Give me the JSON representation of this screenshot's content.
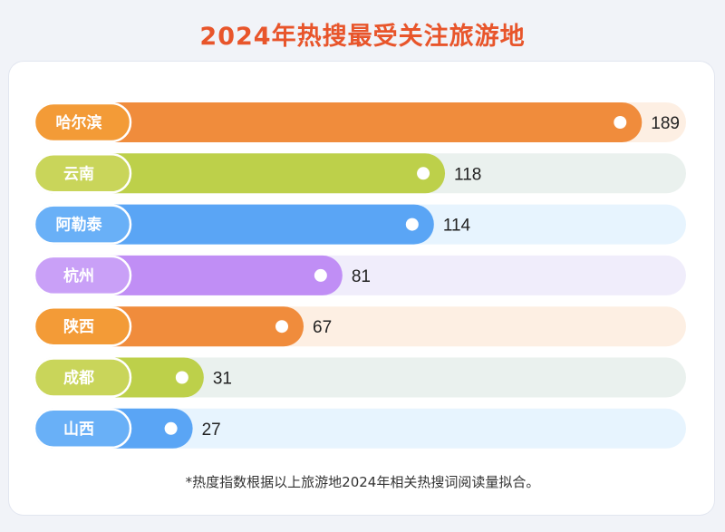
{
  "title": "2024年热搜最受关注旅游地",
  "note": "*热度指数根据以上旅游地2024年相关热搜词阅读量拟合。",
  "colors": {
    "title": "#e8552b",
    "orange_bar": "#f08c3c",
    "orange_label": "#f39b37",
    "orange_track": "#fdefe3",
    "green_bar": "#bdd04a",
    "green_label": "#c9d55a",
    "green_track": "#eaf1ee",
    "blue_bar": "#5aa5f5",
    "blue_label": "#69b0f7",
    "blue_track": "#e7f4fe",
    "purple_bar": "#c08ef5",
    "purple_label": "#c9a0f7",
    "purple_track": "#f0edfb"
  },
  "chart_data": {
    "type": "bar",
    "orientation": "horizontal",
    "title": "2024年热搜最受关注旅游地",
    "categories": [
      "哈尔滨",
      "云南",
      "阿勒泰",
      "杭州",
      "陕西",
      "成都",
      "山西"
    ],
    "values": [
      189,
      118,
      114,
      81,
      67,
      31,
      27
    ],
    "color_groups": [
      "orange",
      "green",
      "blue",
      "purple",
      "orange",
      "green",
      "blue"
    ],
    "xlim": [
      0,
      250
    ],
    "grid": false,
    "legend": "none"
  }
}
